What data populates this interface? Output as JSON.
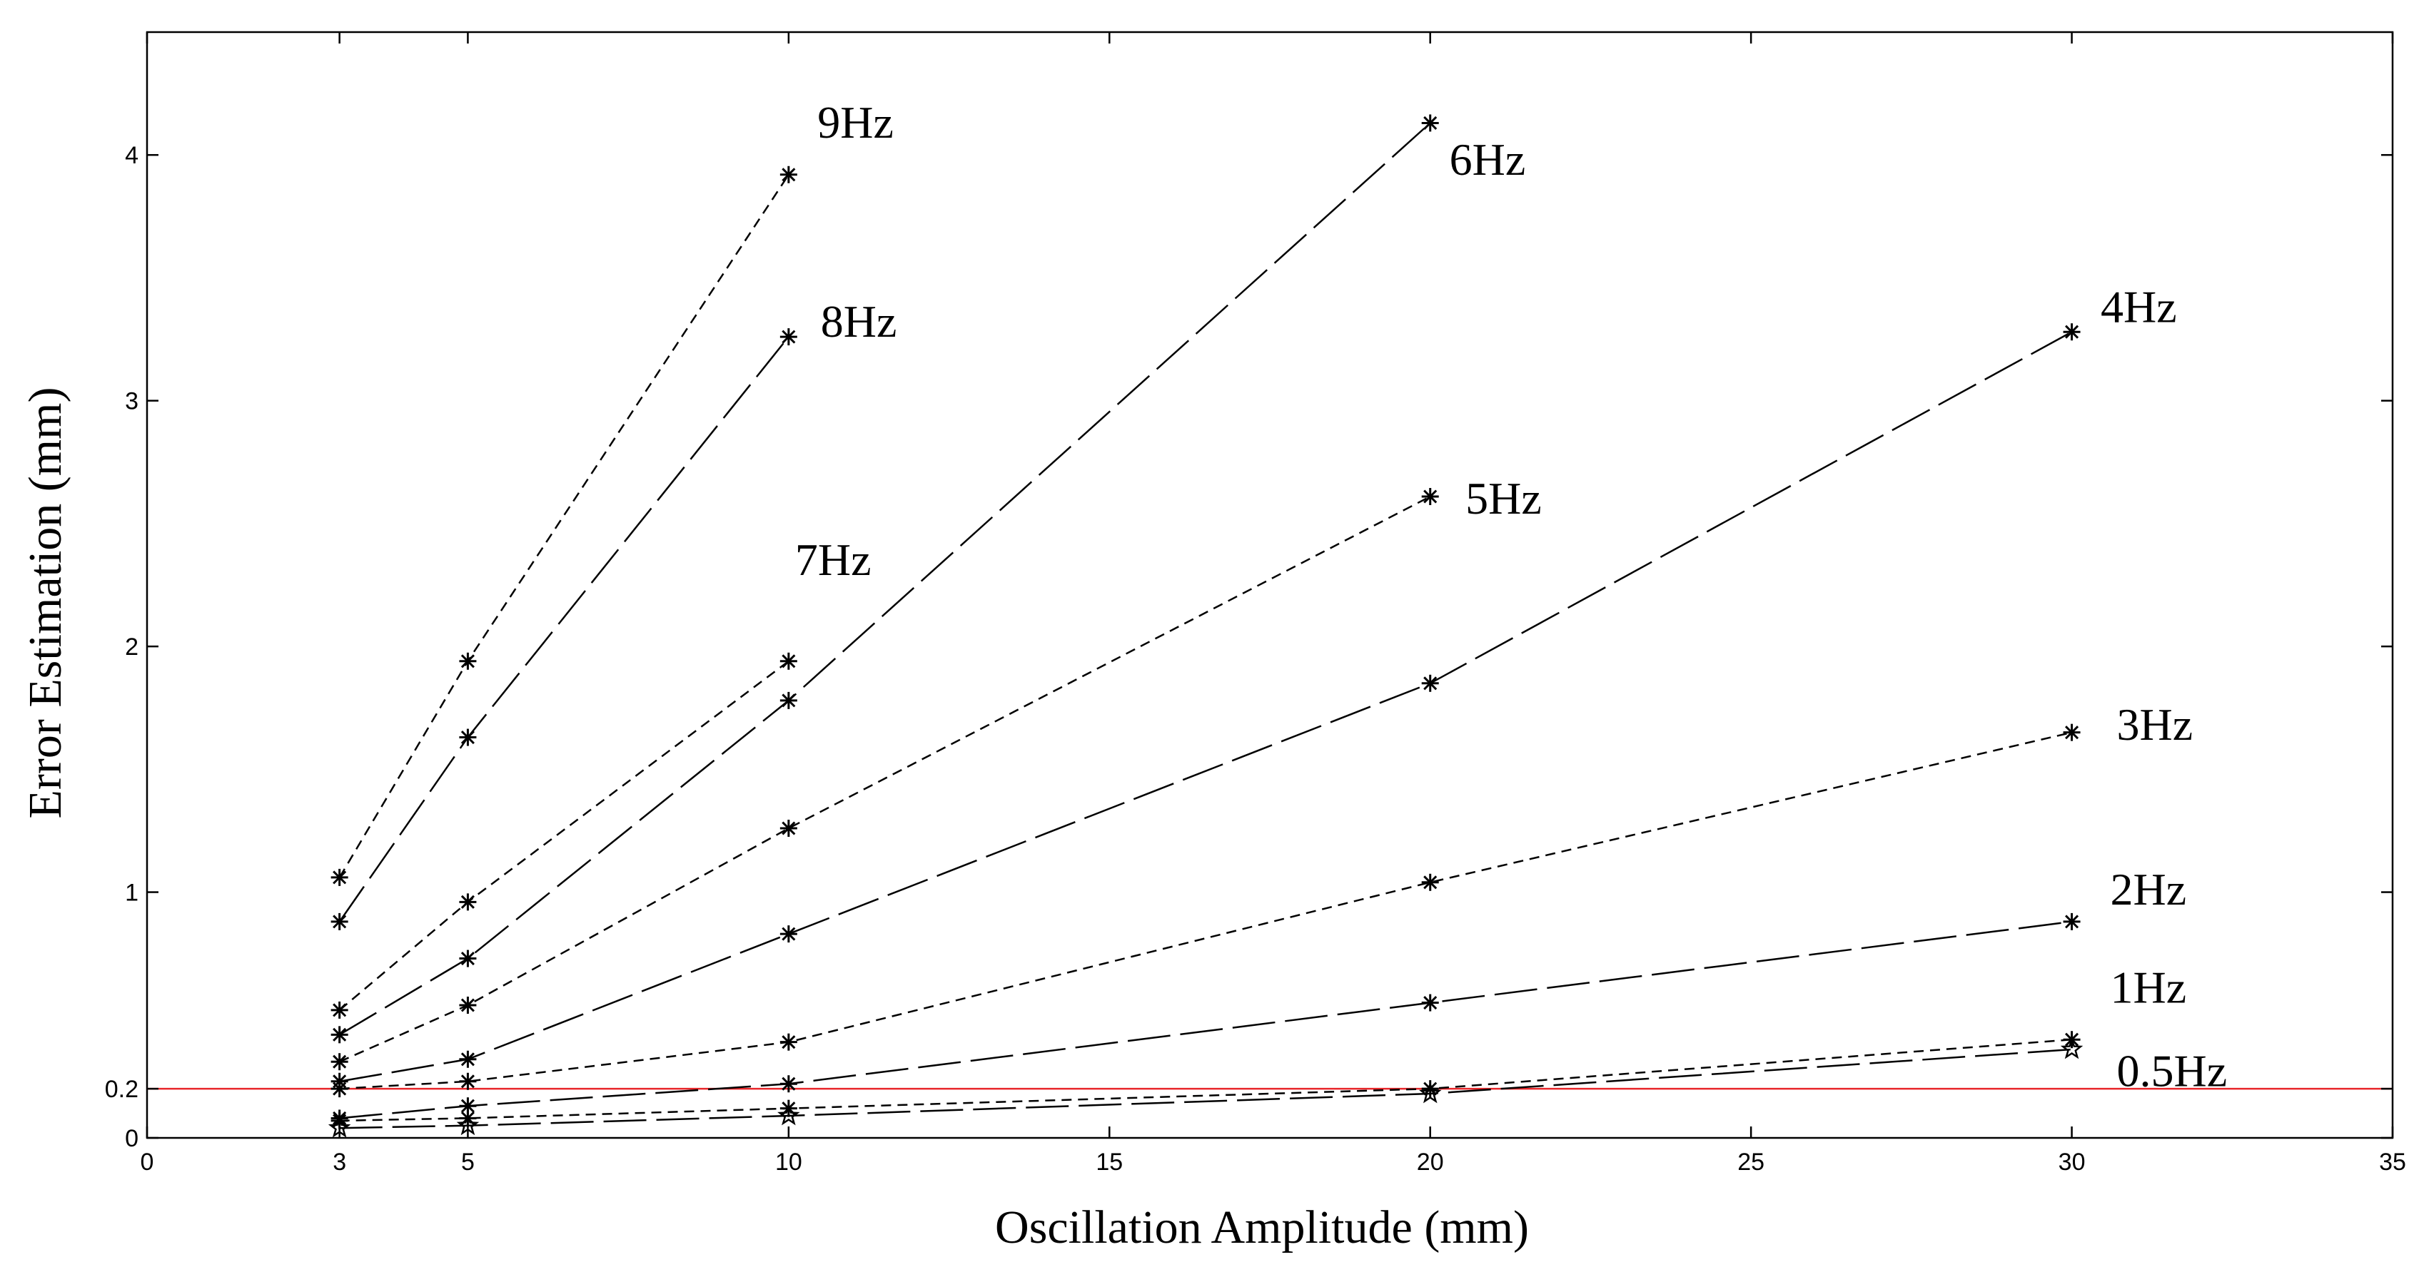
{
  "chart_data": {
    "type": "line",
    "title": "",
    "xlabel": "Oscillation Amplitude (mm)",
    "ylabel": "Error Estimation (mm)",
    "xlim": [
      0,
      35
    ],
    "ylim": [
      0,
      4.5
    ],
    "xticks": [
      0,
      3,
      5,
      10,
      15,
      20,
      25,
      30,
      35
    ],
    "xtick_labels": [
      "0",
      "3",
      "5",
      "10",
      "15",
      "20",
      "25",
      "30",
      "35"
    ],
    "yticks": [
      0,
      0.2,
      1,
      2,
      3,
      4
    ],
    "ytick_labels": [
      "0",
      "0.2",
      "1",
      "2",
      "3",
      "4"
    ],
    "grid": false,
    "reference_line": {
      "y": 0.2,
      "color": "#e8262a"
    },
    "series": [
      {
        "name": "9Hz",
        "dash": "short",
        "marker": "asterisk",
        "x": [
          3,
          5,
          10
        ],
        "values": [
          1.06,
          1.94,
          3.92
        ]
      },
      {
        "name": "8Hz",
        "dash": "long",
        "marker": "asterisk",
        "x": [
          3,
          5,
          10
        ],
        "values": [
          0.88,
          1.63,
          3.26
        ]
      },
      {
        "name": "7Hz",
        "dash": "short",
        "marker": "asterisk",
        "x": [
          3,
          5,
          10
        ],
        "values": [
          0.52,
          0.96,
          1.94
        ]
      },
      {
        "name": "6Hz",
        "dash": "long",
        "marker": "asterisk",
        "x": [
          3,
          5,
          10,
          20
        ],
        "values": [
          0.42,
          0.73,
          1.78,
          4.13
        ]
      },
      {
        "name": "5Hz",
        "dash": "short",
        "marker": "asterisk",
        "x": [
          3,
          5,
          10,
          20
        ],
        "values": [
          0.31,
          0.54,
          1.26,
          2.61
        ]
      },
      {
        "name": "4Hz",
        "dash": "long",
        "marker": "asterisk",
        "x": [
          3,
          5,
          10,
          20,
          30
        ],
        "values": [
          0.23,
          0.32,
          0.83,
          1.85,
          3.28
        ]
      },
      {
        "name": "3Hz",
        "dash": "short",
        "marker": "asterisk",
        "x": [
          3,
          5,
          10,
          20,
          30
        ],
        "values": [
          0.2,
          0.23,
          0.39,
          1.04,
          1.65
        ]
      },
      {
        "name": "2Hz",
        "dash": "long",
        "marker": "asterisk",
        "x": [
          3,
          5,
          10,
          20,
          30
        ],
        "values": [
          0.08,
          0.13,
          0.22,
          0.55,
          0.88
        ]
      },
      {
        "name": "1Hz",
        "dash": "short",
        "marker": "asterisk",
        "x": [
          3,
          5,
          10,
          20,
          30
        ],
        "values": [
          0.07,
          0.08,
          0.12,
          0.2,
          0.4
        ]
      },
      {
        "name": "0.5Hz",
        "dash": "long",
        "marker": "star",
        "x": [
          3,
          5,
          10,
          20,
          30
        ],
        "values": [
          0.04,
          0.05,
          0.09,
          0.18,
          0.36
        ]
      }
    ],
    "annotations": [
      {
        "text": "9Hz",
        "x": 10.45,
        "y": 4.07
      },
      {
        "text": "8Hz",
        "x": 10.5,
        "y": 3.26
      },
      {
        "text": "7Hz",
        "x": 10.1,
        "y": 2.29
      },
      {
        "text": "6Hz",
        "x": 20.3,
        "y": 3.92
      },
      {
        "text": "5Hz",
        "x": 20.55,
        "y": 2.54
      },
      {
        "text": "4Hz",
        "x": 30.45,
        "y": 3.32
      },
      {
        "text": "3Hz",
        "x": 30.7,
        "y": 1.62
      },
      {
        "text": "2Hz",
        "x": 30.6,
        "y": 0.95
      },
      {
        "text": "1Hz",
        "x": 30.6,
        "y": 0.55
      },
      {
        "text": "0.5Hz",
        "x": 30.7,
        "y": 0.21
      }
    ]
  }
}
